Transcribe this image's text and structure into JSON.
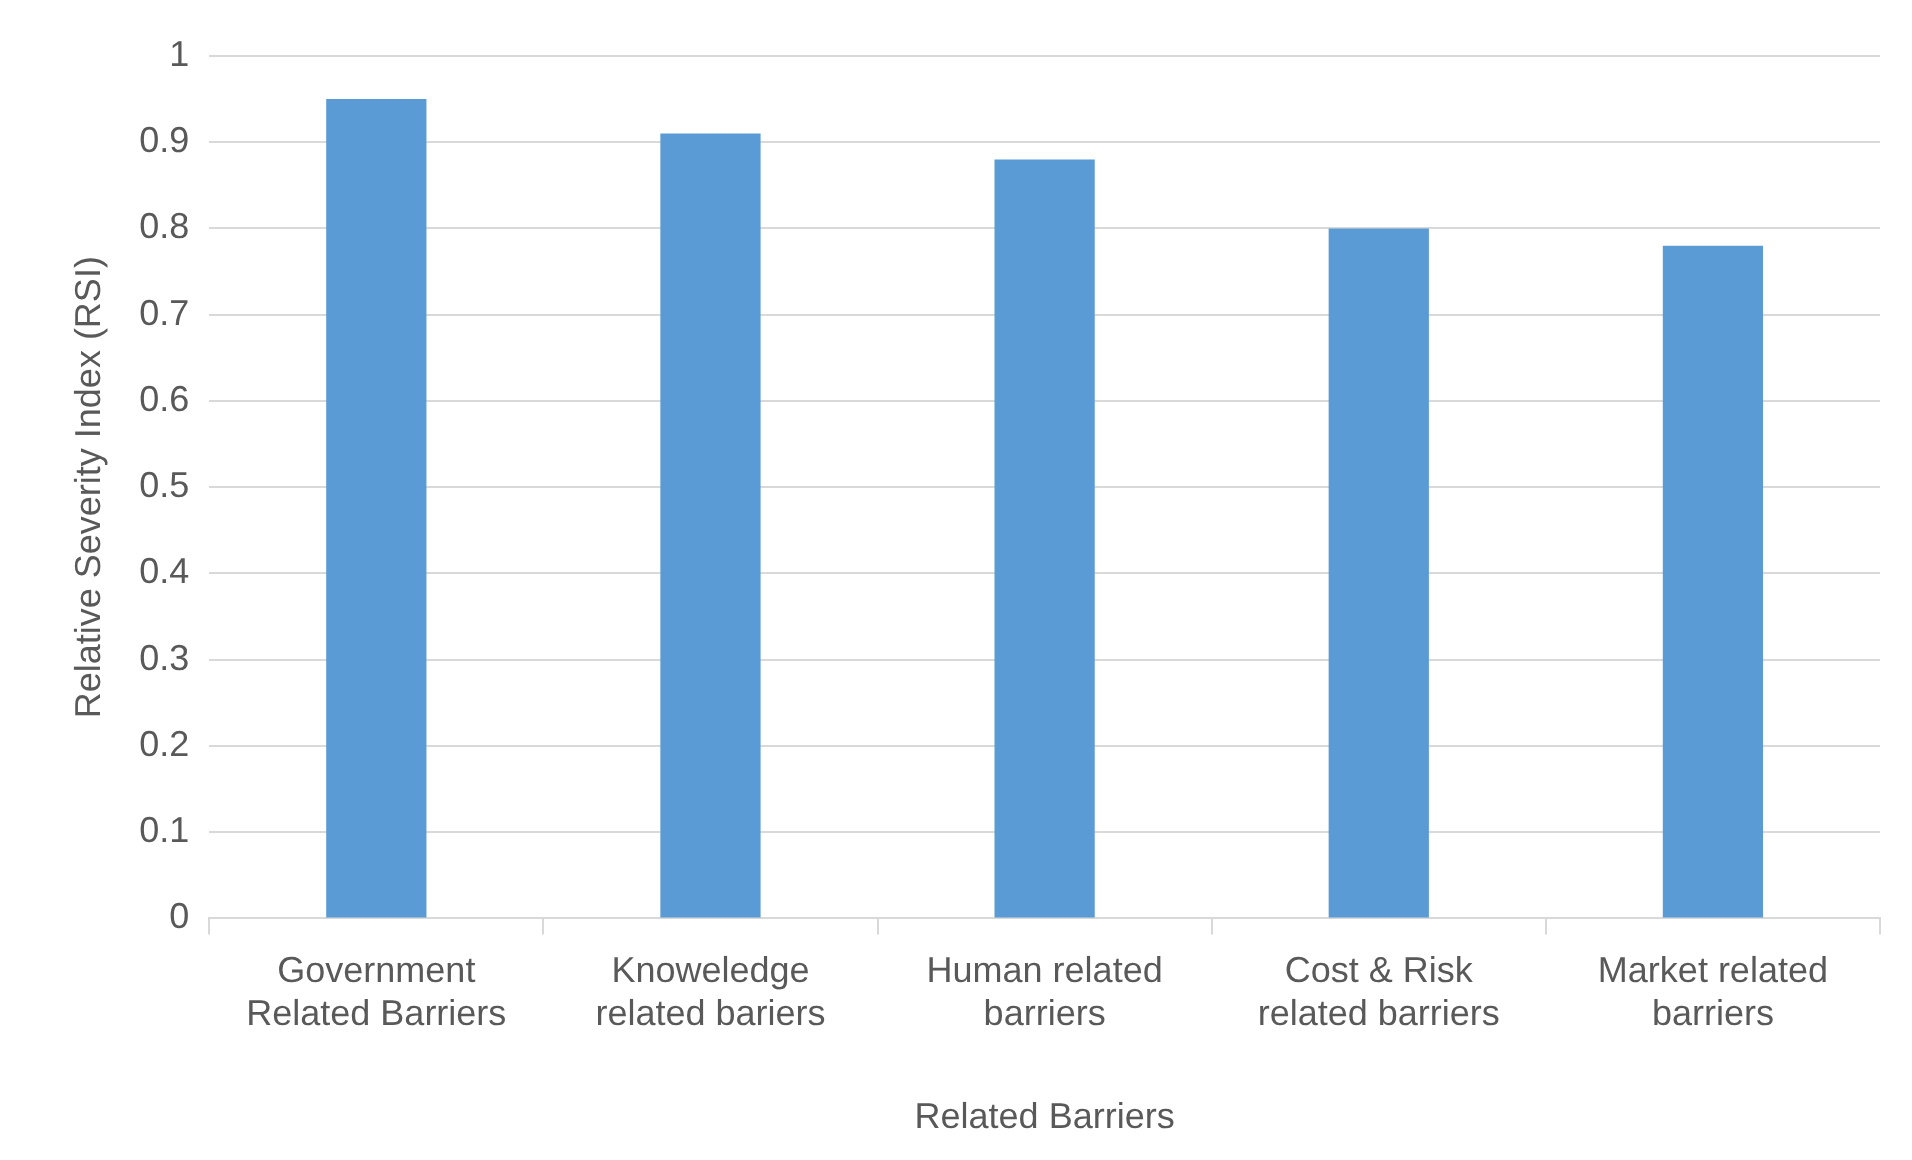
{
  "chart_data": {
    "type": "bar",
    "xlabel": "Related Barriers",
    "ylabel": "Relative Severity Index (RSI)",
    "categories": [
      "Government Related Barriers",
      "Knoweledge related bariers",
      "Human related barriers",
      "Cost & Risk related barriers",
      "Market related barriers"
    ],
    "values": [
      0.95,
      0.91,
      0.88,
      0.8,
      0.78
    ],
    "color": "#5b9bd5",
    "ylim": [
      0,
      1
    ],
    "yticks": [
      0,
      0.1,
      0.2,
      0.3,
      0.4,
      0.5,
      0.6,
      0.7,
      0.8,
      0.9,
      1
    ],
    "grid": "y",
    "legend": false
  }
}
